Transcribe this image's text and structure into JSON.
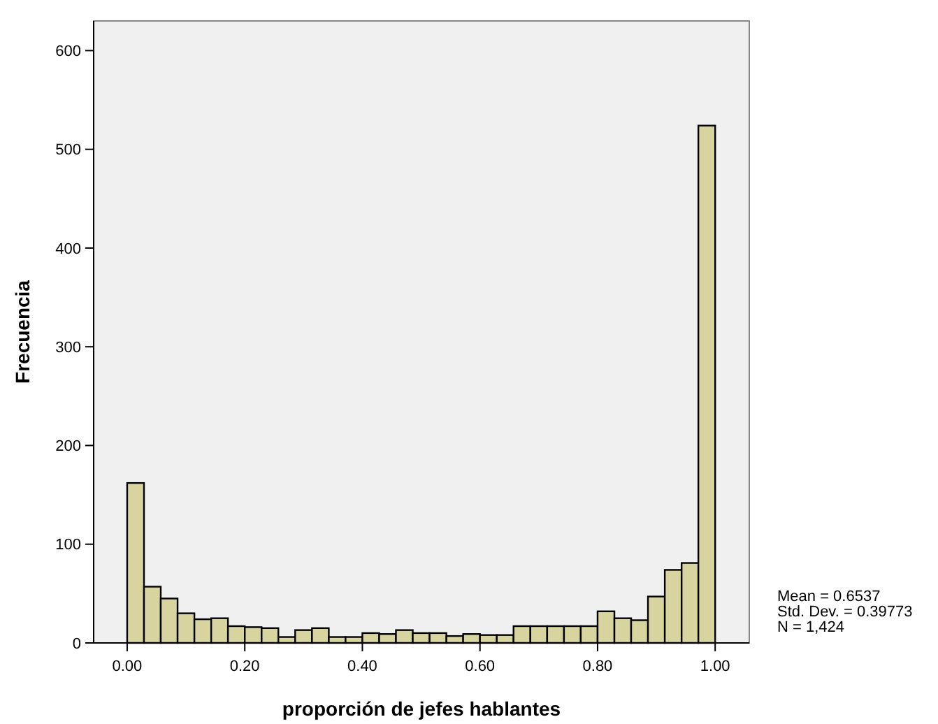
{
  "chart_data": {
    "type": "histogram",
    "xlabel": "proporción de jefes hablantes",
    "ylabel": "Frecuencia",
    "bins": [
      0,
      0.0286,
      0.0571,
      0.0857,
      0.1143,
      0.1429,
      0.1714,
      0.2,
      0.2286,
      0.2571,
      0.2857,
      0.3143,
      0.3429,
      0.3714,
      0.4,
      0.4286,
      0.4571,
      0.4857,
      0.5143,
      0.5429,
      0.5714,
      0.6,
      0.6286,
      0.6571,
      0.6857,
      0.7143,
      0.7429,
      0.7714,
      0.8,
      0.8286,
      0.8571,
      0.8857,
      0.9143,
      0.9429,
      0.9714,
      1
    ],
    "values": [
      162,
      57,
      45,
      30,
      24,
      25,
      17,
      16,
      15,
      6,
      13,
      15,
      6,
      6,
      10,
      9,
      13,
      10,
      10,
      7,
      9,
      8,
      8,
      17,
      17,
      17,
      17,
      17,
      32,
      25,
      23,
      47,
      74,
      81,
      524
    ],
    "color": "#d8d4a0",
    "xlim": [
      -0.057,
      1.058
    ],
    "xticks": [
      {
        "value": 0,
        "label": "0.00"
      },
      {
        "value": 0.2,
        "label": "0.20"
      },
      {
        "value": 0.4,
        "label": "0.40"
      },
      {
        "value": 0.6,
        "label": "0.60"
      },
      {
        "value": 0.8,
        "label": "0.80"
      },
      {
        "value": 1,
        "label": "1.00"
      }
    ],
    "ylim": [
      0,
      630
    ],
    "yticks": [
      0,
      100,
      200,
      300,
      400,
      500,
      600
    ],
    "annotations": [
      "Mean = 0.6537",
      "Std. Dev. = 0.39773",
      "N = 1,424"
    ]
  }
}
